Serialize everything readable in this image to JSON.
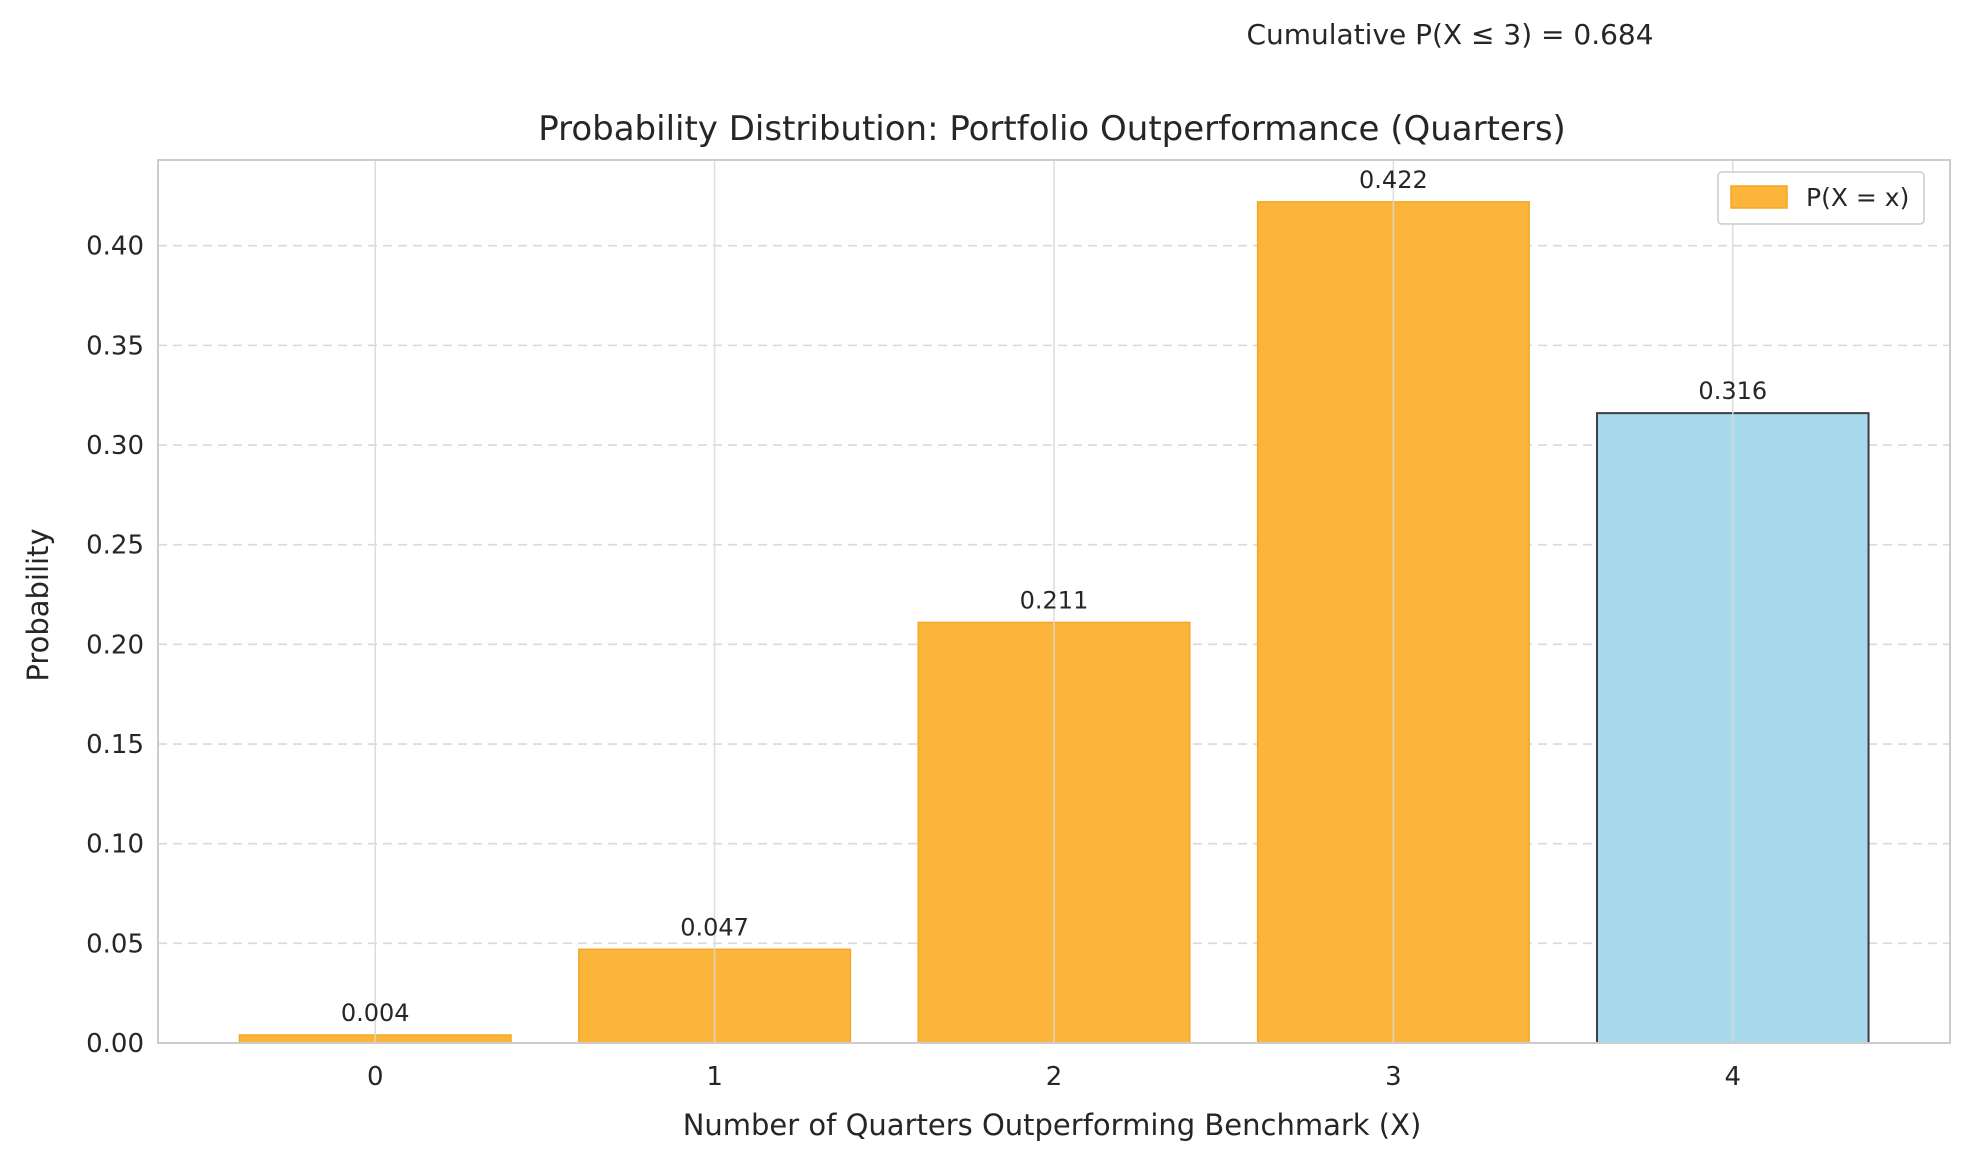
{
  "chart_data": {
    "type": "bar",
    "title": "Probability Distribution: Portfolio Outperformance (Quarters)",
    "annotation": "Cumulative P(X ≤ 3) = 0.684",
    "xlabel": "Number of Quarters Outperforming Benchmark (X)",
    "ylabel": "Probability",
    "categories": [
      "0",
      "1",
      "2",
      "3",
      "4"
    ],
    "values": [
      0.004,
      0.047,
      0.211,
      0.422,
      0.316
    ],
    "value_labels": [
      "0.004",
      "0.047",
      "0.211",
      "0.422",
      "0.316"
    ],
    "yticks": [
      0.0,
      0.05,
      0.1,
      0.15,
      0.2,
      0.25,
      0.3,
      0.35,
      0.4
    ],
    "ytick_labels": [
      "0.00",
      "0.05",
      "0.10",
      "0.15",
      "0.20",
      "0.25",
      "0.30",
      "0.35",
      "0.40"
    ],
    "ylim": [
      0,
      0.443
    ],
    "xlim": [
      -0.64,
      4.64
    ],
    "grid": true,
    "legend": {
      "placement": "top-right",
      "label": "P(X = x)"
    },
    "highlight_index": 4,
    "colors": {
      "bar": "#FBB53A",
      "bar_edge": "#F5A623",
      "highlight_bar": "#A8DAEE",
      "highlight_edge": "#3B3F44",
      "annotation": "#FF0000",
      "grid": "#D9D9D9",
      "axes": "#CCCCCC"
    }
  }
}
